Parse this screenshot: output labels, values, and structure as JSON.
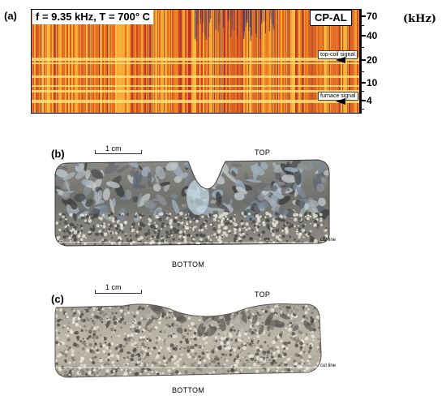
{
  "panel_a": {
    "label": "(a)",
    "title": "f = 9.35 kHz, T = 700° C",
    "tag": "CP-AL",
    "axis_ticks": [
      "70",
      "40",
      "20",
      "10",
      "4"
    ],
    "unit": "(kHz)",
    "top_coil_callout": "top-coil signal",
    "furnace_callout": "furnace signal"
  },
  "panel_b": {
    "label": "(b)",
    "scale": "1 cm",
    "top": "TOP",
    "bottom": "BOTTOM",
    "cut_line": "cut line"
  },
  "panel_c": {
    "label": "(c)",
    "scale": "1 cm",
    "top": "TOP",
    "bottom": "BOTTOM",
    "cut_line": "cut line"
  }
}
